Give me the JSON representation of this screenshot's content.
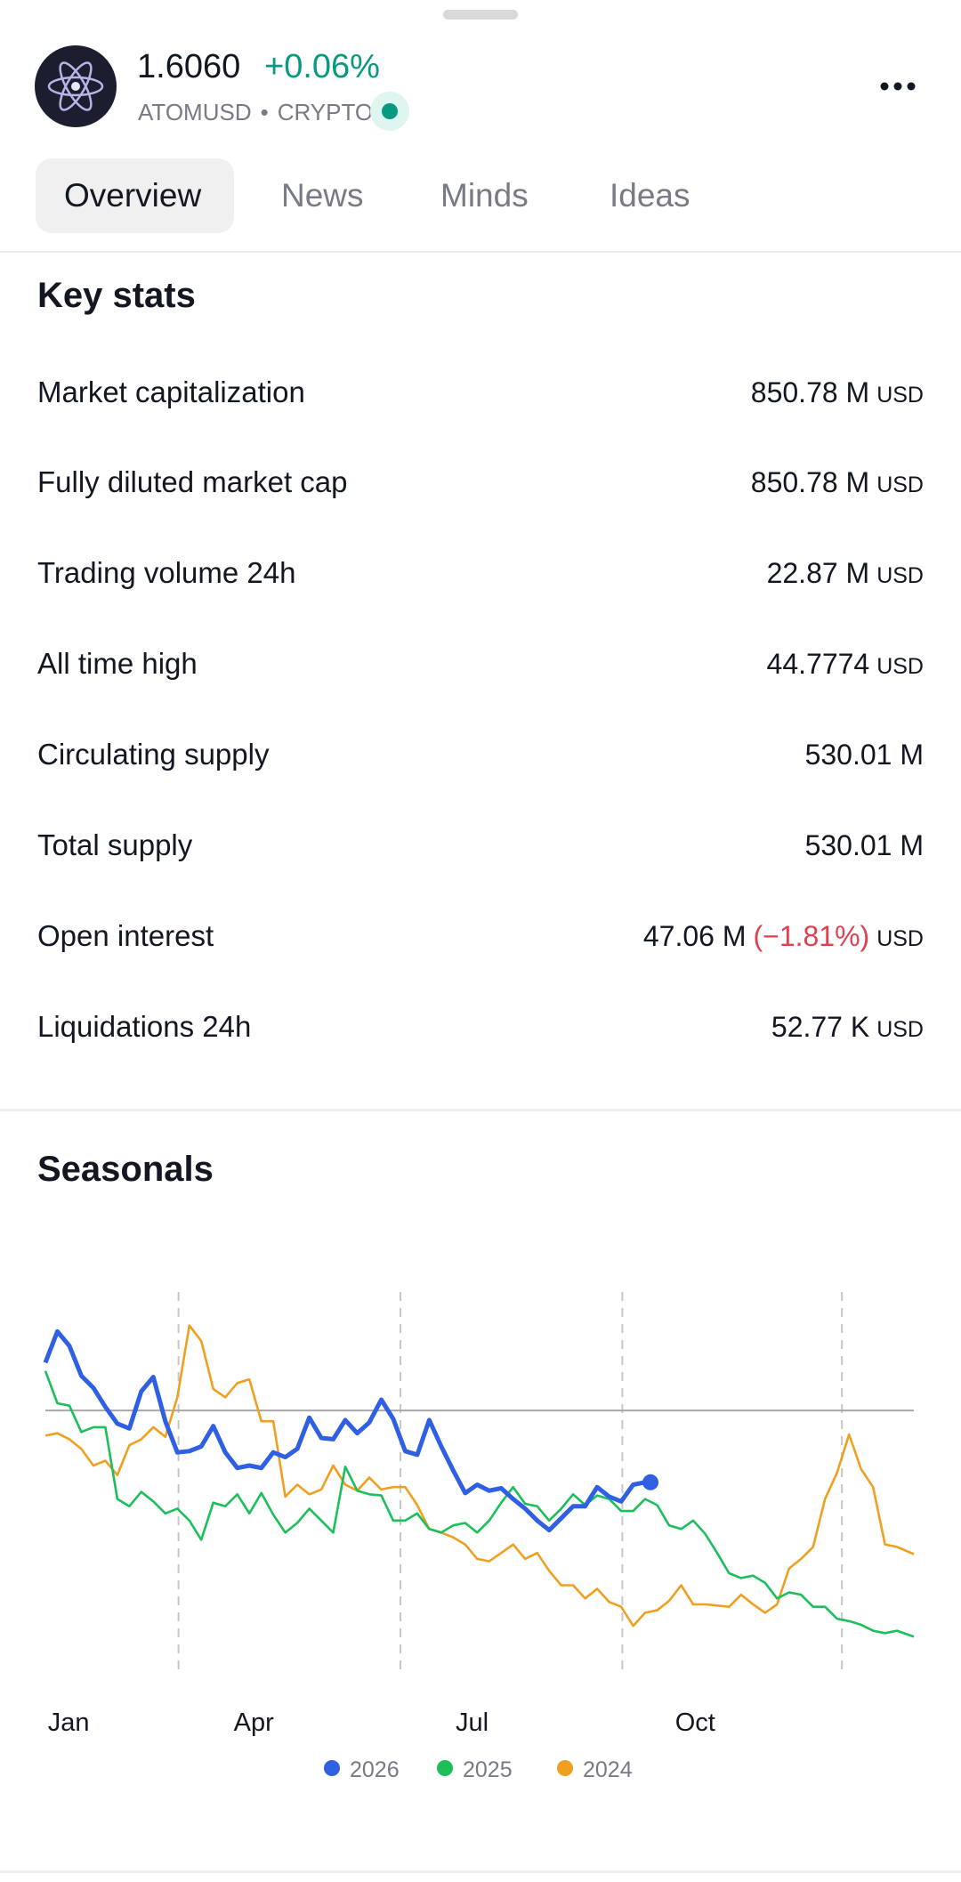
{
  "header": {
    "price": "1.6060",
    "change": "+0.06%",
    "symbol": "ATOMUSD",
    "separator": "•",
    "market": "CRYPTO"
  },
  "tabs": [
    "Overview",
    "News",
    "Minds",
    "Ideas"
  ],
  "key_stats": {
    "title": "Key stats",
    "rows": [
      {
        "label": "Market capitalization",
        "value": "850.78 M",
        "unit": "USD"
      },
      {
        "label": "Fully diluted market cap",
        "value": "850.78 M",
        "unit": "USD"
      },
      {
        "label": "Trading volume 24h",
        "value": "22.87 M",
        "unit": "USD"
      },
      {
        "label": "All time high",
        "value": "44.7774",
        "unit": "USD"
      },
      {
        "label": "Circulating supply",
        "value": "530.01 M"
      },
      {
        "label": "Total supply",
        "value": "530.01 M"
      },
      {
        "label": "Open interest",
        "value": "47.06 M",
        "change": "(−1.81%)",
        "unit": "USD"
      },
      {
        "label": "Liquidations 24h",
        "value": "52.77 K",
        "unit": "USD"
      }
    ]
  },
  "chart_data": {
    "type": "line",
    "title": "Seasonals",
    "x": [
      0,
      1,
      2,
      3,
      4,
      5,
      6,
      7,
      8,
      9,
      10,
      11,
      12,
      13,
      14,
      15,
      16,
      17,
      18,
      19,
      20,
      21,
      22,
      23,
      24,
      25,
      26,
      27,
      28,
      29,
      30,
      31,
      32,
      33,
      34,
      35,
      36,
      37,
      38,
      39,
      40,
      41,
      42,
      43,
      44,
      45,
      46,
      47,
      48,
      49,
      50,
      51,
      52,
      53,
      54,
      55,
      56,
      57,
      58,
      59,
      60,
      61,
      62,
      63,
      64,
      65,
      66,
      67,
      68,
      69,
      70,
      71,
      72.4
    ],
    "xlim": [
      0,
      72.4
    ],
    "ylim": [
      -110,
      48
    ],
    "baseline": 0,
    "vlines": [
      11.1,
      29.6,
      48.1,
      66.4
    ],
    "xticks": [
      {
        "value": 0.2,
        "label": "Jan"
      },
      {
        "value": 15.7,
        "label": "Apr"
      },
      {
        "value": 34.2,
        "label": "Jul"
      },
      {
        "value": 52.5,
        "label": "Oct"
      }
    ],
    "legend": "bottom",
    "series": [
      {
        "name": "2026",
        "color": "#2f5fe3",
        "values": [
          20,
          33,
          27,
          14.5,
          9.5,
          1.5,
          -5.5,
          -7.5,
          8,
          14,
          -4.5,
          -17.5,
          -17,
          -15,
          -6.5,
          -17.5,
          -24,
          -23,
          -24,
          -17.5,
          -19.5,
          -16,
          -3,
          -11.5,
          -12,
          -4,
          -9.5,
          -5,
          4.5,
          -3.5,
          -17,
          -18.5,
          -4,
          -15,
          -25,
          -34.5,
          -31,
          -33.5,
          -32.5,
          -37,
          -41,
          -46,
          -50,
          -45,
          -40,
          -40,
          -32,
          -36,
          -38,
          -31,
          -30,
          null,
          null,
          null,
          null,
          null,
          null,
          null,
          null,
          null,
          null,
          null,
          null,
          null,
          null,
          null,
          null,
          null,
          null,
          null,
          null,
          null,
          null
        ]
      },
      {
        "name": "2025",
        "color": "#1dbf5b",
        "values": [
          16.5,
          3,
          2,
          -9,
          -7,
          -7,
          -37,
          -40,
          -34,
          -38,
          -43,
          -41,
          -46,
          -54,
          -38.5,
          -40,
          -35,
          -43,
          -34.5,
          -43.5,
          -51,
          -47,
          -41,
          -46,
          -51,
          -23.5,
          -33.5,
          -35,
          -35.5,
          -46,
          -46,
          -43,
          -49.5,
          -51,
          -48,
          -47,
          -51,
          -46,
          -38.5,
          -32,
          -39,
          -40,
          -46,
          -41,
          -35,
          -39.5,
          -35.5,
          -37,
          -42,
          -42,
          -37,
          -39.5,
          -48,
          -49.5,
          -46,
          -51.5,
          -59.5,
          -68,
          -70,
          -69,
          -72,
          -78.5,
          -76,
          -77,
          -82,
          -82,
          -87,
          -88,
          -89.5,
          -92,
          -93,
          -92,
          -94.5
        ]
      },
      {
        "name": "2024",
        "color": "#f0a020",
        "values": [
          -10.5,
          -9.5,
          -12,
          -16,
          -23,
          -21,
          -27,
          -14.5,
          -12,
          -7,
          -11,
          5.5,
          35.5,
          29,
          9,
          5.5,
          11.5,
          13,
          -4.5,
          -4.5,
          -36,
          -31,
          -35,
          -33,
          -23,
          -31,
          -33.5,
          -28,
          -33,
          -32,
          -32,
          -39.5,
          -49.5,
          -51,
          -53,
          -56,
          -62,
          -63,
          -59.5,
          -56,
          -62,
          -59.5,
          -67,
          -73,
          -73,
          -78.5,
          -74.5,
          -80,
          -82,
          -90,
          -84.5,
          -83.5,
          -79.5,
          -73,
          -81,
          -81,
          -81.5,
          -82,
          -77,
          -81,
          -84.5,
          -81,
          -66,
          -62,
          -57,
          -37,
          -26,
          -10,
          -24.5,
          -32,
          -56,
          -57,
          -60
        ]
      }
    ]
  }
}
